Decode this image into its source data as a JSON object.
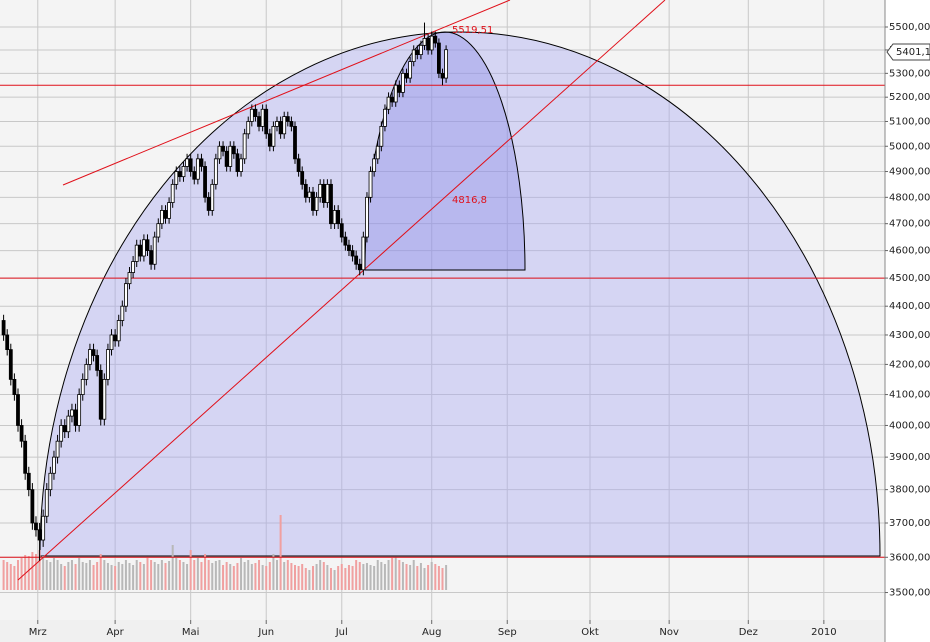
{
  "chart_data": {
    "type": "candlestick",
    "log_y": true,
    "grid": true,
    "ylim": [
      3424,
      5620
    ],
    "yticks": [
      {
        "value": 3500,
        "label": "3500,00"
      },
      {
        "value": 3600,
        "label": "3600,00"
      },
      {
        "value": 3700,
        "label": "3700,00"
      },
      {
        "value": 3800,
        "label": "3800,00"
      },
      {
        "value": 3900,
        "label": "3900,00"
      },
      {
        "value": 4000,
        "label": "4000,00"
      },
      {
        "value": 4100,
        "label": "4100,00"
      },
      {
        "value": 4200,
        "label": "4200,00"
      },
      {
        "value": 4300,
        "label": "4300,00"
      },
      {
        "value": 4400,
        "label": "4400,00"
      },
      {
        "value": 4500,
        "label": "4500,00"
      },
      {
        "value": 4600,
        "label": "4600,00"
      },
      {
        "value": 4700,
        "label": "4700,00"
      },
      {
        "value": 4800,
        "label": "4800,00"
      },
      {
        "value": 4900,
        "label": "4900,00"
      },
      {
        "value": 5000,
        "label": "5000,00"
      },
      {
        "value": 5100,
        "label": "5100,00"
      },
      {
        "value": 5200,
        "label": "5200,00"
      },
      {
        "value": 5300,
        "label": "5300,00"
      },
      {
        "value": 5400,
        "label": "5400,00"
      },
      {
        "value": 5500,
        "label": "5500,00"
      }
    ],
    "xlim": [
      0,
      246
    ],
    "xticks": [
      {
        "value": 10.5,
        "label": "Mrz"
      },
      {
        "value": 32,
        "label": "Apr"
      },
      {
        "value": 53,
        "label": "Mai"
      },
      {
        "value": 74,
        "label": "Jun"
      },
      {
        "value": 95,
        "label": "Jul"
      },
      {
        "value": 120,
        "label": "Aug"
      },
      {
        "value": 141,
        "label": "Sep"
      },
      {
        "value": 164,
        "label": "Okt"
      },
      {
        "value": 186,
        "label": "Nov"
      },
      {
        "value": 208,
        "label": "Dez"
      },
      {
        "value": 229,
        "label": "2010"
      }
    ],
    "series": [
      {
        "up_color": "#ffffff",
        "down_color": "#000000",
        "x": [
          1,
          2,
          3,
          4,
          5,
          6,
          7,
          8,
          9,
          10,
          11,
          12,
          13,
          14,
          15,
          16,
          17,
          18,
          19,
          20,
          21,
          22,
          23,
          24,
          25,
          26,
          27,
          28,
          29,
          30,
          31,
          32,
          33,
          34,
          35,
          36,
          37,
          38,
          39,
          40,
          41,
          42,
          43,
          44,
          45,
          46,
          47,
          48,
          49,
          50,
          51,
          52,
          53,
          54,
          55,
          56,
          57,
          58,
          59,
          60,
          61,
          62,
          63,
          64,
          65,
          66,
          67,
          68,
          69,
          70,
          71,
          72,
          73,
          74,
          75,
          76,
          77,
          78,
          79,
          80,
          81,
          82,
          83,
          84,
          85,
          86,
          87,
          88,
          89,
          90,
          91,
          92,
          93,
          94,
          95,
          96,
          97,
          98,
          99,
          100,
          101,
          102,
          103,
          104,
          105,
          106,
          107,
          108,
          109,
          110,
          111,
          112,
          113,
          114,
          115,
          116,
          117,
          118,
          119,
          120,
          121,
          122,
          123,
          124
        ],
        "open": [
          4350,
          4300,
          4250,
          4150,
          4100,
          4000,
          3950,
          3850,
          3800,
          3700,
          3680,
          3650,
          3720,
          3800,
          3850,
          3900,
          3950,
          4000,
          3980,
          4030,
          4050,
          4000,
          4100,
          4150,
          4200,
          4250,
          4230,
          4180,
          4020,
          4150,
          4250,
          4300,
          4280,
          4350,
          4400,
          4480,
          4520,
          4560,
          4620,
          4580,
          4640,
          4600,
          4550,
          4650,
          4700,
          4750,
          4720,
          4780,
          4850,
          4900,
          4880,
          4920,
          4950,
          4900,
          4870,
          4950,
          4920,
          4800,
          4750,
          4850,
          4950,
          5000,
          4980,
          4920,
          5000,
          4970,
          4900,
          4950,
          5050,
          5100,
          5150,
          5120,
          5080,
          5150,
          5050,
          5000,
          5080,
          5100,
          5050,
          5120,
          5100,
          5080,
          4950,
          4900,
          4850,
          4800,
          4820,
          4750,
          4800,
          4850,
          4780,
          4850,
          4700,
          4750,
          4700,
          4650,
          4620,
          4600,
          4580,
          4550,
          4530,
          4650,
          4800,
          4900,
          4950,
          5000,
          5080,
          5150,
          5200,
          5180,
          5250,
          5220,
          5300,
          5280,
          5350,
          5400,
          5380,
          5420,
          5450,
          5400,
          5460,
          5430,
          5300,
          5280
        ],
        "high": [
          4370,
          4320,
          4270,
          4170,
          4120,
          4020,
          3970,
          3870,
          3820,
          3720,
          3700,
          3740,
          3820,
          3870,
          3920,
          3970,
          4020,
          4020,
          4050,
          4070,
          4070,
          4120,
          4170,
          4220,
          4270,
          4270,
          4250,
          4200,
          4170,
          4270,
          4320,
          4320,
          4370,
          4420,
          4500,
          4540,
          4580,
          4640,
          4640,
          4660,
          4660,
          4620,
          4670,
          4720,
          4770,
          4770,
          4800,
          4870,
          4920,
          4920,
          4940,
          4970,
          4970,
          4920,
          4970,
          4970,
          4940,
          4820,
          4870,
          4970,
          5020,
          5020,
          5000,
          5020,
          5020,
          4990,
          4970,
          5070,
          5120,
          5170,
          5170,
          5140,
          5170,
          5170,
          5070,
          5100,
          5120,
          5120,
          5140,
          5140,
          5120,
          5100,
          4970,
          4920,
          4870,
          4840,
          4840,
          4820,
          4870,
          4870,
          4870,
          4870,
          4770,
          4770,
          4720,
          4670,
          4640,
          4620,
          4600,
          4570,
          4670,
          4820,
          4920,
          4970,
          5020,
          5100,
          5170,
          5220,
          5220,
          5270,
          5270,
          5320,
          5320,
          5370,
          5420,
          5420,
          5440,
          5519.51,
          5470,
          5480,
          5480,
          5450,
          5320,
          5420
        ],
        "low": [
          4280,
          4230,
          4130,
          4080,
          3980,
          3930,
          3830,
          3780,
          3680,
          3660,
          3590,
          3630,
          3700,
          3780,
          3830,
          3880,
          3930,
          3960,
          3960,
          4010,
          3980,
          3980,
          4080,
          4130,
          4180,
          4210,
          4160,
          4000,
          4000,
          4130,
          4230,
          4260,
          4260,
          4330,
          4380,
          4460,
          4500,
          4540,
          4560,
          4560,
          4580,
          4530,
          4530,
          4630,
          4680,
          4700,
          4700,
          4760,
          4830,
          4860,
          4860,
          4900,
          4880,
          4850,
          4850,
          4900,
          4780,
          4730,
          4730,
          4830,
          4930,
          4960,
          4900,
          4900,
          4950,
          4880,
          4880,
          4930,
          5030,
          5080,
          5100,
          5060,
          5060,
          5030,
          4980,
          4980,
          5060,
          5030,
          5030,
          5080,
          5060,
          4930,
          4880,
          4830,
          4780,
          4780,
          4730,
          4730,
          4780,
          4760,
          4760,
          4680,
          4680,
          4680,
          4630,
          4600,
          4580,
          4560,
          4530,
          4510,
          4510,
          4630,
          4780,
          4880,
          4930,
          4980,
          5060,
          5130,
          5160,
          5160,
          5200,
          5200,
          5260,
          5260,
          5330,
          5360,
          5360,
          5400,
          5380,
          5380,
          5410,
          5280,
          5250,
          5260
        ],
        "close": [
          4300,
          4250,
          4150,
          4100,
          4000,
          3950,
          3850,
          3800,
          3700,
          3680,
          3650,
          3720,
          3800,
          3850,
          3900,
          3950,
          4000,
          3980,
          4030,
          4050,
          4000,
          4100,
          4150,
          4200,
          4250,
          4230,
          4180,
          4020,
          4150,
          4250,
          4300,
          4280,
          4350,
          4400,
          4480,
          4520,
          4560,
          4620,
          4580,
          4640,
          4600,
          4550,
          4650,
          4700,
          4750,
          4720,
          4780,
          4850,
          4900,
          4880,
          4920,
          4950,
          4900,
          4870,
          4950,
          4920,
          4800,
          4750,
          4850,
          4950,
          5000,
          4980,
          4920,
          5000,
          4970,
          4900,
          4950,
          5050,
          5100,
          5150,
          5120,
          5080,
          5150,
          5050,
          5000,
          5080,
          5100,
          5050,
          5120,
          5100,
          5080,
          4950,
          4900,
          4850,
          4800,
          4820,
          4750,
          4800,
          4850,
          4780,
          4850,
          4700,
          4750,
          4700,
          4650,
          4620,
          4600,
          4580,
          4550,
          4530,
          4650,
          4800,
          4900,
          4950,
          5000,
          5080,
          5150,
          5200,
          5180,
          5250,
          5220,
          5300,
          5280,
          5350,
          5400,
          5380,
          5420,
          5450,
          5400,
          5460,
          5430,
          5300,
          5280,
          5401.1
        ],
        "volume": [
          30,
          28,
          26,
          24,
          30,
          32,
          35,
          34,
          38,
          36,
          40,
          34,
          30,
          28,
          32,
          30,
          26,
          24,
          28,
          30,
          26,
          32,
          28,
          27,
          30,
          25,
          28,
          36,
          30,
          27,
          25,
          24,
          28,
          26,
          30,
          27,
          25,
          30,
          28,
          26,
          32,
          30,
          28,
          26,
          30,
          27,
          29,
          45,
          32,
          30,
          28,
          26,
          40,
          30,
          32,
          28,
          36,
          30,
          27,
          29,
          30,
          25,
          28,
          26,
          24,
          27,
          32,
          28,
          30,
          26,
          27,
          30,
          25,
          24,
          28,
          36,
          30,
          75,
          28,
          30,
          27,
          25,
          24,
          26,
          22,
          20,
          24,
          26,
          30,
          28,
          25,
          22,
          20,
          24,
          26,
          22,
          25,
          24,
          30,
          28,
          26,
          27,
          25,
          24,
          30,
          28,
          26,
          30,
          32,
          33,
          30,
          28,
          26,
          25,
          30,
          24,
          27,
          22,
          25,
          28,
          26,
          24,
          22,
          25
        ]
      }
    ],
    "horizontal_lines": {
      "color": "#e0101a",
      "values": [
        5250,
        4500,
        3600
      ]
    },
    "annotations": [
      "5519,51",
      "4816,8"
    ],
    "last_price": "5401,1"
  }
}
